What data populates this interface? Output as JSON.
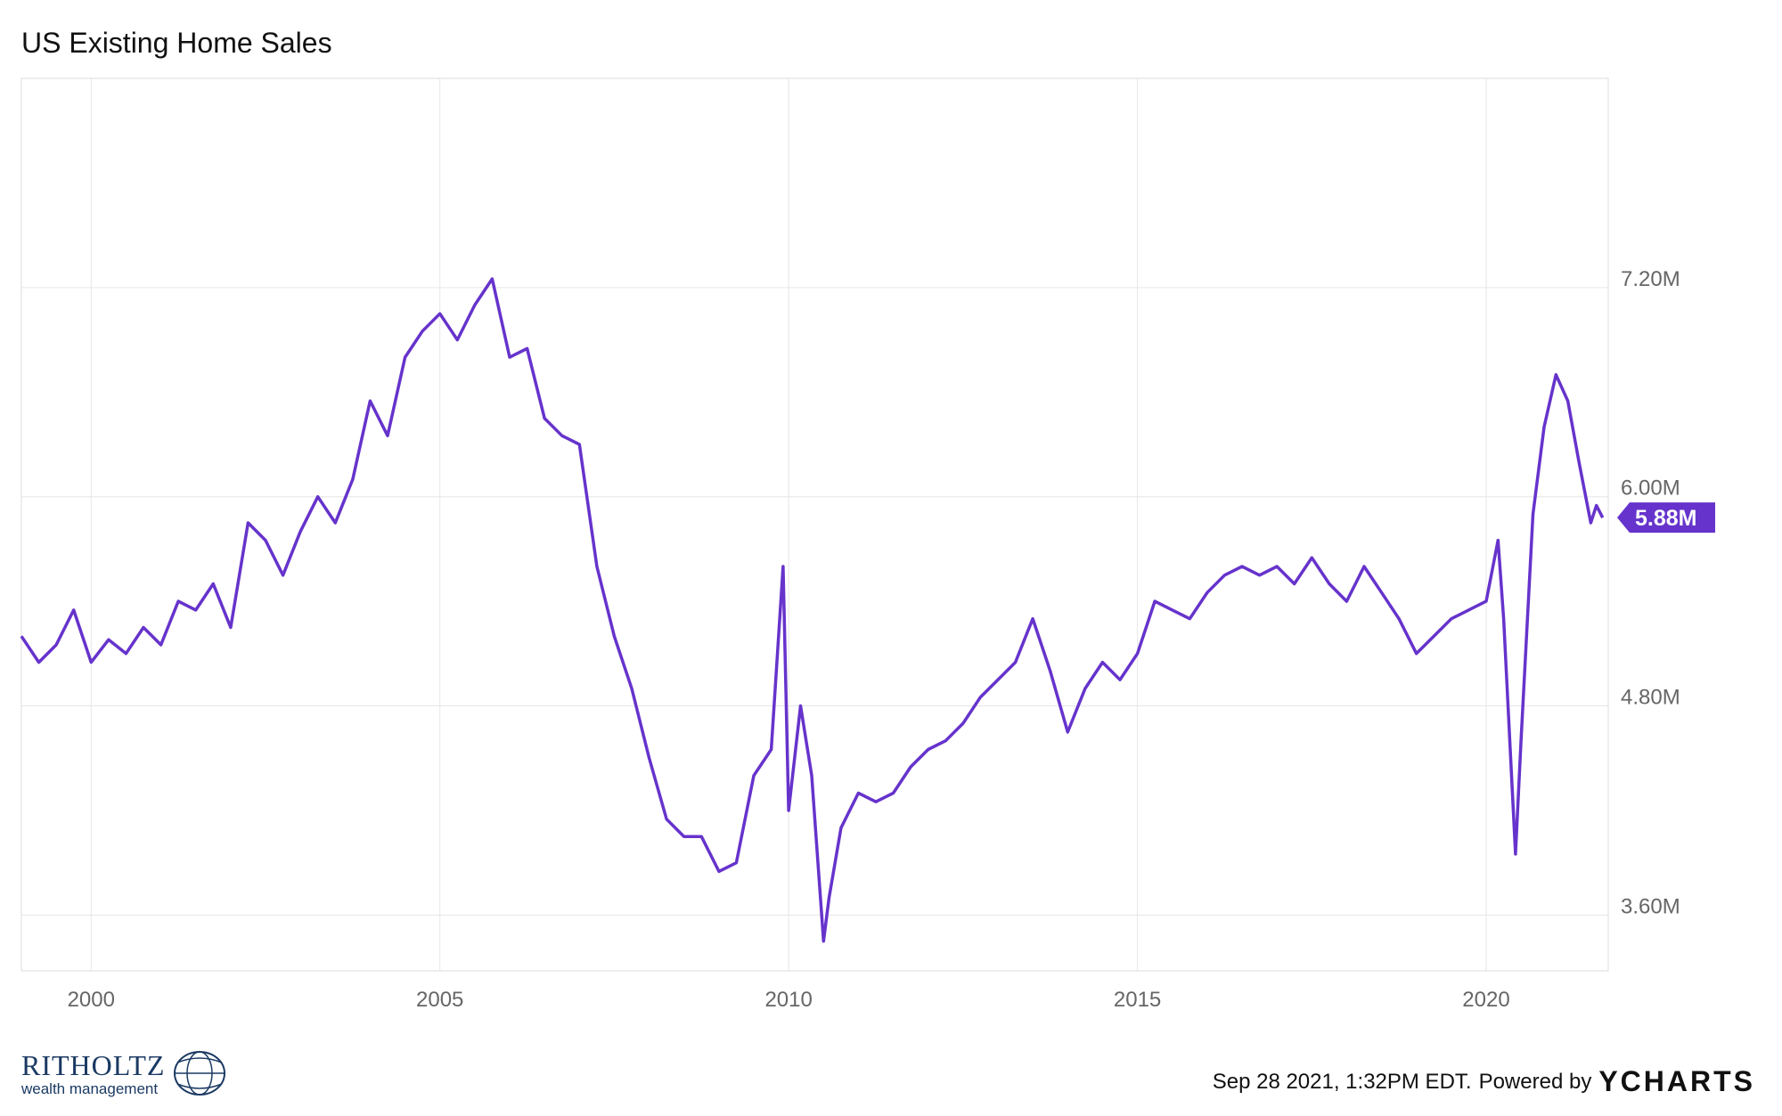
{
  "title": "US Existing Home Sales",
  "footer": {
    "timestamp": "Sep 28 2021, 1:32PM EDT.",
    "powered_by": "Powered by",
    "brand": "YCHARTS"
  },
  "logo": {
    "name": "RITHOLTZ",
    "sub": "wealth management"
  },
  "colors": {
    "series": "#6633cc",
    "grid": "#e6e6e6",
    "axis_text": "#666666"
  },
  "chart_data": {
    "type": "line",
    "title": "US Existing Home Sales",
    "x_ticks": [
      "2000",
      "2005",
      "2010",
      "2015",
      "2020"
    ],
    "y_ticks": [
      "3.60M",
      "4.80M",
      "6.00M",
      "7.20M"
    ],
    "ylim": [
      3.28,
      8.4
    ],
    "xlim": [
      1999.0,
      2021.75
    ],
    "grid": true,
    "last_value_label": "5.88M",
    "series": [
      {
        "x": [
          1999.0,
          1999.25,
          1999.5,
          1999.75,
          2000.0,
          2000.25,
          2000.5,
          2000.75,
          2001.0,
          2001.25,
          2001.5,
          2001.75,
          2002.0,
          2002.25,
          2002.5,
          2002.75,
          2003.0,
          2003.25,
          2003.5,
          2003.75,
          2004.0,
          2004.25,
          2004.5,
          2004.75,
          2005.0,
          2005.25,
          2005.5,
          2005.75,
          2006.0,
          2006.25,
          2006.5,
          2006.75,
          2007.0,
          2007.25,
          2007.5,
          2007.75,
          2008.0,
          2008.25,
          2008.5,
          2008.75,
          2009.0,
          2009.25,
          2009.5,
          2009.75,
          2009.92,
          2010.0,
          2010.17,
          2010.33,
          2010.5,
          2010.58,
          2010.75,
          2011.0,
          2011.25,
          2011.5,
          2011.75,
          2012.0,
          2012.25,
          2012.5,
          2012.75,
          2013.0,
          2013.25,
          2013.5,
          2013.75,
          2014.0,
          2014.25,
          2014.5,
          2014.75,
          2015.0,
          2015.25,
          2015.5,
          2015.75,
          2016.0,
          2016.25,
          2016.5,
          2016.75,
          2017.0,
          2017.25,
          2017.5,
          2017.75,
          2018.0,
          2018.25,
          2018.5,
          2018.75,
          2019.0,
          2019.25,
          2019.5,
          2019.75,
          2020.0,
          2020.17,
          2020.25,
          2020.42,
          2020.5,
          2020.67,
          2020.83,
          2021.0,
          2021.17,
          2021.33,
          2021.5,
          2021.58,
          2021.67
        ],
        "values": [
          5.2,
          5.05,
          5.15,
          5.35,
          5.05,
          5.18,
          5.1,
          5.25,
          5.15,
          5.4,
          5.35,
          5.5,
          5.25,
          5.85,
          5.75,
          5.55,
          5.8,
          6.0,
          5.85,
          6.1,
          6.55,
          6.35,
          6.8,
          6.95,
          7.05,
          6.9,
          7.1,
          7.25,
          6.8,
          6.85,
          6.45,
          6.35,
          6.3,
          5.6,
          5.2,
          4.9,
          4.5,
          4.15,
          4.05,
          4.05,
          3.85,
          3.9,
          4.4,
          4.55,
          5.6,
          4.2,
          4.8,
          4.4,
          3.45,
          3.7,
          4.1,
          4.3,
          4.25,
          4.3,
          4.45,
          4.55,
          4.6,
          4.7,
          4.85,
          4.95,
          5.05,
          5.3,
          5.0,
          4.65,
          4.9,
          5.05,
          4.95,
          5.1,
          5.4,
          5.35,
          5.3,
          5.45,
          5.55,
          5.6,
          5.55,
          5.6,
          5.5,
          5.65,
          5.5,
          5.4,
          5.6,
          5.45,
          5.3,
          5.1,
          5.2,
          5.3,
          5.35,
          5.4,
          5.75,
          5.3,
          3.95,
          4.6,
          5.9,
          6.4,
          6.7,
          6.55,
          6.2,
          5.85,
          5.95,
          5.88
        ]
      }
    ]
  }
}
